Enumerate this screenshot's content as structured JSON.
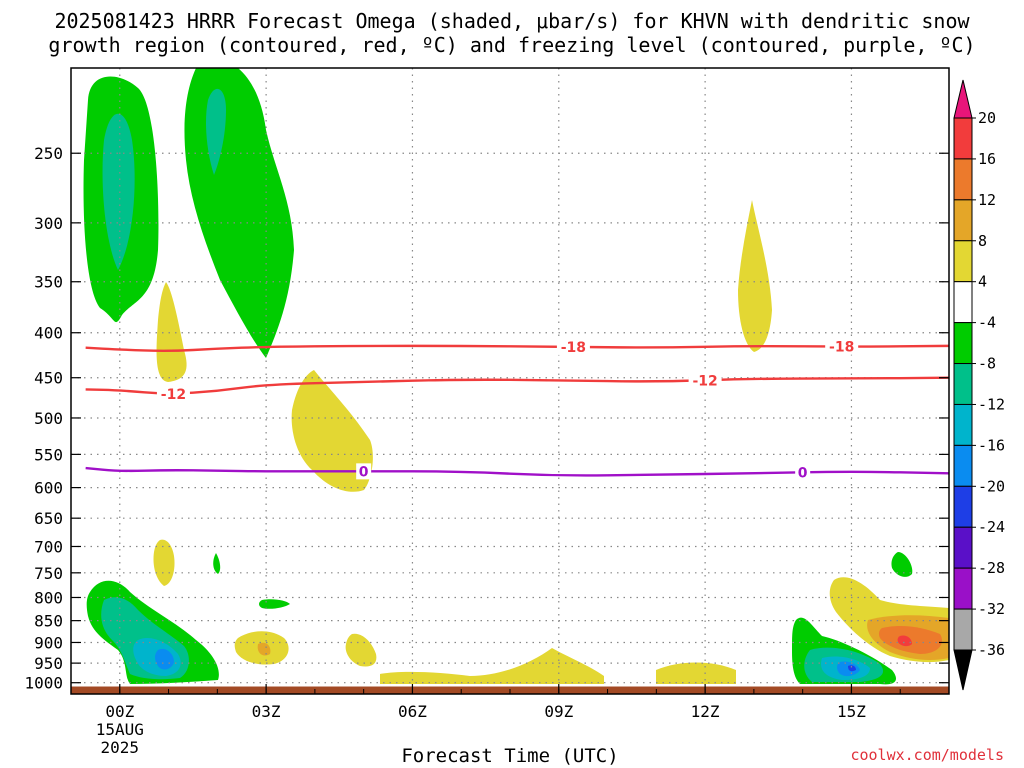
{
  "title_line1": "2025081423 HRRR Forecast Omega (shaded, μbar/s) for KHVN with dendritic snow",
  "title_line2": "growth region (contoured, red, ºC) and freezing level (contoured, purple, ºC)",
  "credit": "coolwx.com/models",
  "chart_data": {
    "type": "heatmap",
    "title": "2025081423 HRRR Forecast Omega (shaded, μbar/s) for KHVN with dendritic snow growth region (contoured, red, ºC) and freezing level (contoured, purple, ºC)",
    "xlabel": "Forecast Time (UTC)",
    "ylabel": "",
    "x_ticks": [
      "00Z",
      "03Z",
      "06Z",
      "09Z",
      "12Z",
      "15Z"
    ],
    "x_tick_hours": [
      0,
      3,
      6,
      9,
      12,
      15
    ],
    "x_start_label": [
      "15AUG",
      "2025"
    ],
    "x_range_hours": [
      -1,
      17
    ],
    "y_ticks": [
      250,
      300,
      350,
      400,
      450,
      500,
      550,
      600,
      650,
      700,
      750,
      800,
      850,
      900,
      950,
      1000
    ],
    "y_range_mb": [
      200,
      1030
    ],
    "y_scale": "log",
    "colorbar": {
      "levels": [
        20,
        16,
        12,
        8,
        4,
        -4,
        -8,
        -12,
        -16,
        -20,
        -24,
        -28,
        -32,
        -36
      ],
      "colors": [
        "#e8157a",
        "#f23c3c",
        "#ec7a2c",
        "#e4a628",
        "#e3d733",
        "#ffffff",
        "#00cc00",
        "#00c08a",
        "#00b4cc",
        "#0a8cf0",
        "#1e3ee6",
        "#5a10c8",
        "#9a10c8",
        "#a8a8a8",
        "#000000"
      ]
    },
    "contours": [
      {
        "name": "-18",
        "color": "#f03c3c",
        "label": "-18",
        "points": [
          [
            -0.7,
            416
          ],
          [
            0,
            418
          ],
          [
            1,
            420
          ],
          [
            2,
            417
          ],
          [
            3,
            415
          ],
          [
            5,
            414
          ],
          [
            7,
            414
          ],
          [
            9,
            415
          ],
          [
            11,
            416
          ],
          [
            13,
            414
          ],
          [
            15,
            415
          ],
          [
            17,
            414
          ]
        ],
        "label_hours": [
          9.3,
          14.8
        ]
      },
      {
        "name": "-12",
        "color": "#f03c3c",
        "label": "-12",
        "points": [
          [
            -0.7,
            464
          ],
          [
            0,
            465
          ],
          [
            1,
            470
          ],
          [
            2,
            466
          ],
          [
            3,
            458
          ],
          [
            5,
            455
          ],
          [
            7,
            452
          ],
          [
            9,
            453
          ],
          [
            11,
            455
          ],
          [
            13,
            451
          ],
          [
            15,
            451
          ],
          [
            17,
            450
          ]
        ],
        "label_hours": [
          1.1,
          12
        ]
      },
      {
        "name": "0",
        "color": "#a010c8",
        "label": "0",
        "points": [
          [
            -0.7,
            570
          ],
          [
            0,
            575
          ],
          [
            1,
            573
          ],
          [
            2,
            574
          ],
          [
            3,
            575
          ],
          [
            5,
            575
          ],
          [
            7,
            575
          ],
          [
            9,
            582
          ],
          [
            11,
            580
          ],
          [
            13,
            578
          ],
          [
            15,
            575
          ],
          [
            17,
            578
          ]
        ],
        "label_hours": [
          5,
          14
        ]
      }
    ],
    "surface_color": "#a34a24"
  }
}
